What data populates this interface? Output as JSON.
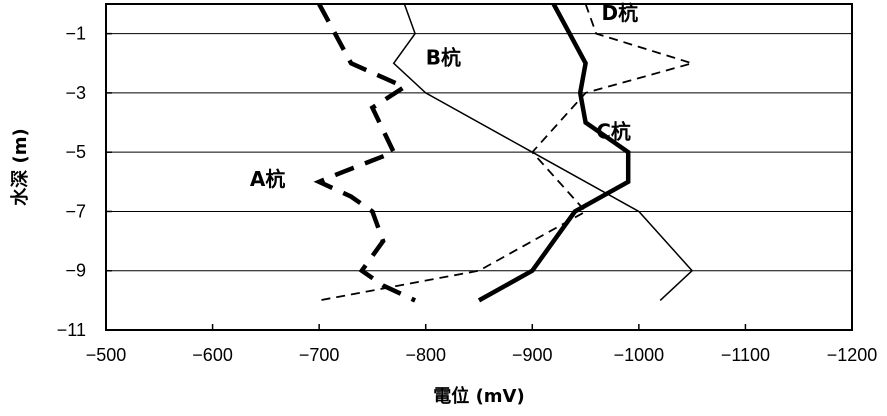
{
  "chart_data": {
    "type": "line",
    "xlabel": "電位 (mV)",
    "ylabel": "水深 (m)",
    "xlim": [
      -500,
      -1200
    ],
    "ylim": [
      0,
      -11
    ],
    "x_ticks": [
      -500,
      -600,
      -700,
      -800,
      -900,
      -1000,
      -1100,
      -1200
    ],
    "y_ticks": [
      -1,
      -3,
      -5,
      -7,
      -9,
      -11
    ],
    "x_tick_labels": [
      "−500",
      "−600",
      "−700",
      "−800",
      "−900",
      "−1000",
      "−1100",
      "−1200"
    ],
    "y_tick_labels": [
      "−1",
      "−3",
      "−5",
      "−7",
      "−9",
      "−11"
    ],
    "grid": "horizontal",
    "series": [
      {
        "name": "A杭",
        "style": "long-dash-thick",
        "points": [
          [
            -700,
            0
          ],
          [
            -730,
            -2
          ],
          [
            -780,
            -2.8
          ],
          [
            -750,
            -3.5
          ],
          [
            -770,
            -5
          ],
          [
            -720,
            -5.7
          ],
          [
            -700,
            -6
          ],
          [
            -730,
            -6.5
          ],
          [
            -750,
            -7
          ],
          [
            -760,
            -8
          ],
          [
            -740,
            -9
          ],
          [
            -760,
            -9.5
          ],
          [
            -790,
            -10
          ]
        ]
      },
      {
        "name": "B杭",
        "style": "thin-solid",
        "points": [
          [
            -780,
            0
          ],
          [
            -790,
            -1
          ],
          [
            -770,
            -2
          ],
          [
            -800,
            -3
          ],
          [
            -900,
            -5
          ],
          [
            -1000,
            -7
          ],
          [
            -1050,
            -9
          ],
          [
            -1020,
            -10
          ]
        ]
      },
      {
        "name": "C杭",
        "style": "thick-solid",
        "points": [
          [
            -920,
            0
          ],
          [
            -935,
            -1
          ],
          [
            -950,
            -2
          ],
          [
            -945,
            -3
          ],
          [
            -950,
            -4
          ],
          [
            -990,
            -5
          ],
          [
            -990,
            -6
          ],
          [
            -940,
            -7
          ],
          [
            -920,
            -8
          ],
          [
            -900,
            -9
          ],
          [
            -850,
            -10
          ]
        ]
      },
      {
        "name": "D杭",
        "style": "short-dash",
        "points": [
          [
            -950,
            0
          ],
          [
            -960,
            -1
          ],
          [
            -1050,
            -2
          ],
          [
            -950,
            -3
          ],
          [
            -900,
            -5
          ],
          [
            -950,
            -7
          ],
          [
            -850,
            -9
          ],
          [
            -700,
            -10
          ]
        ]
      }
    ]
  }
}
